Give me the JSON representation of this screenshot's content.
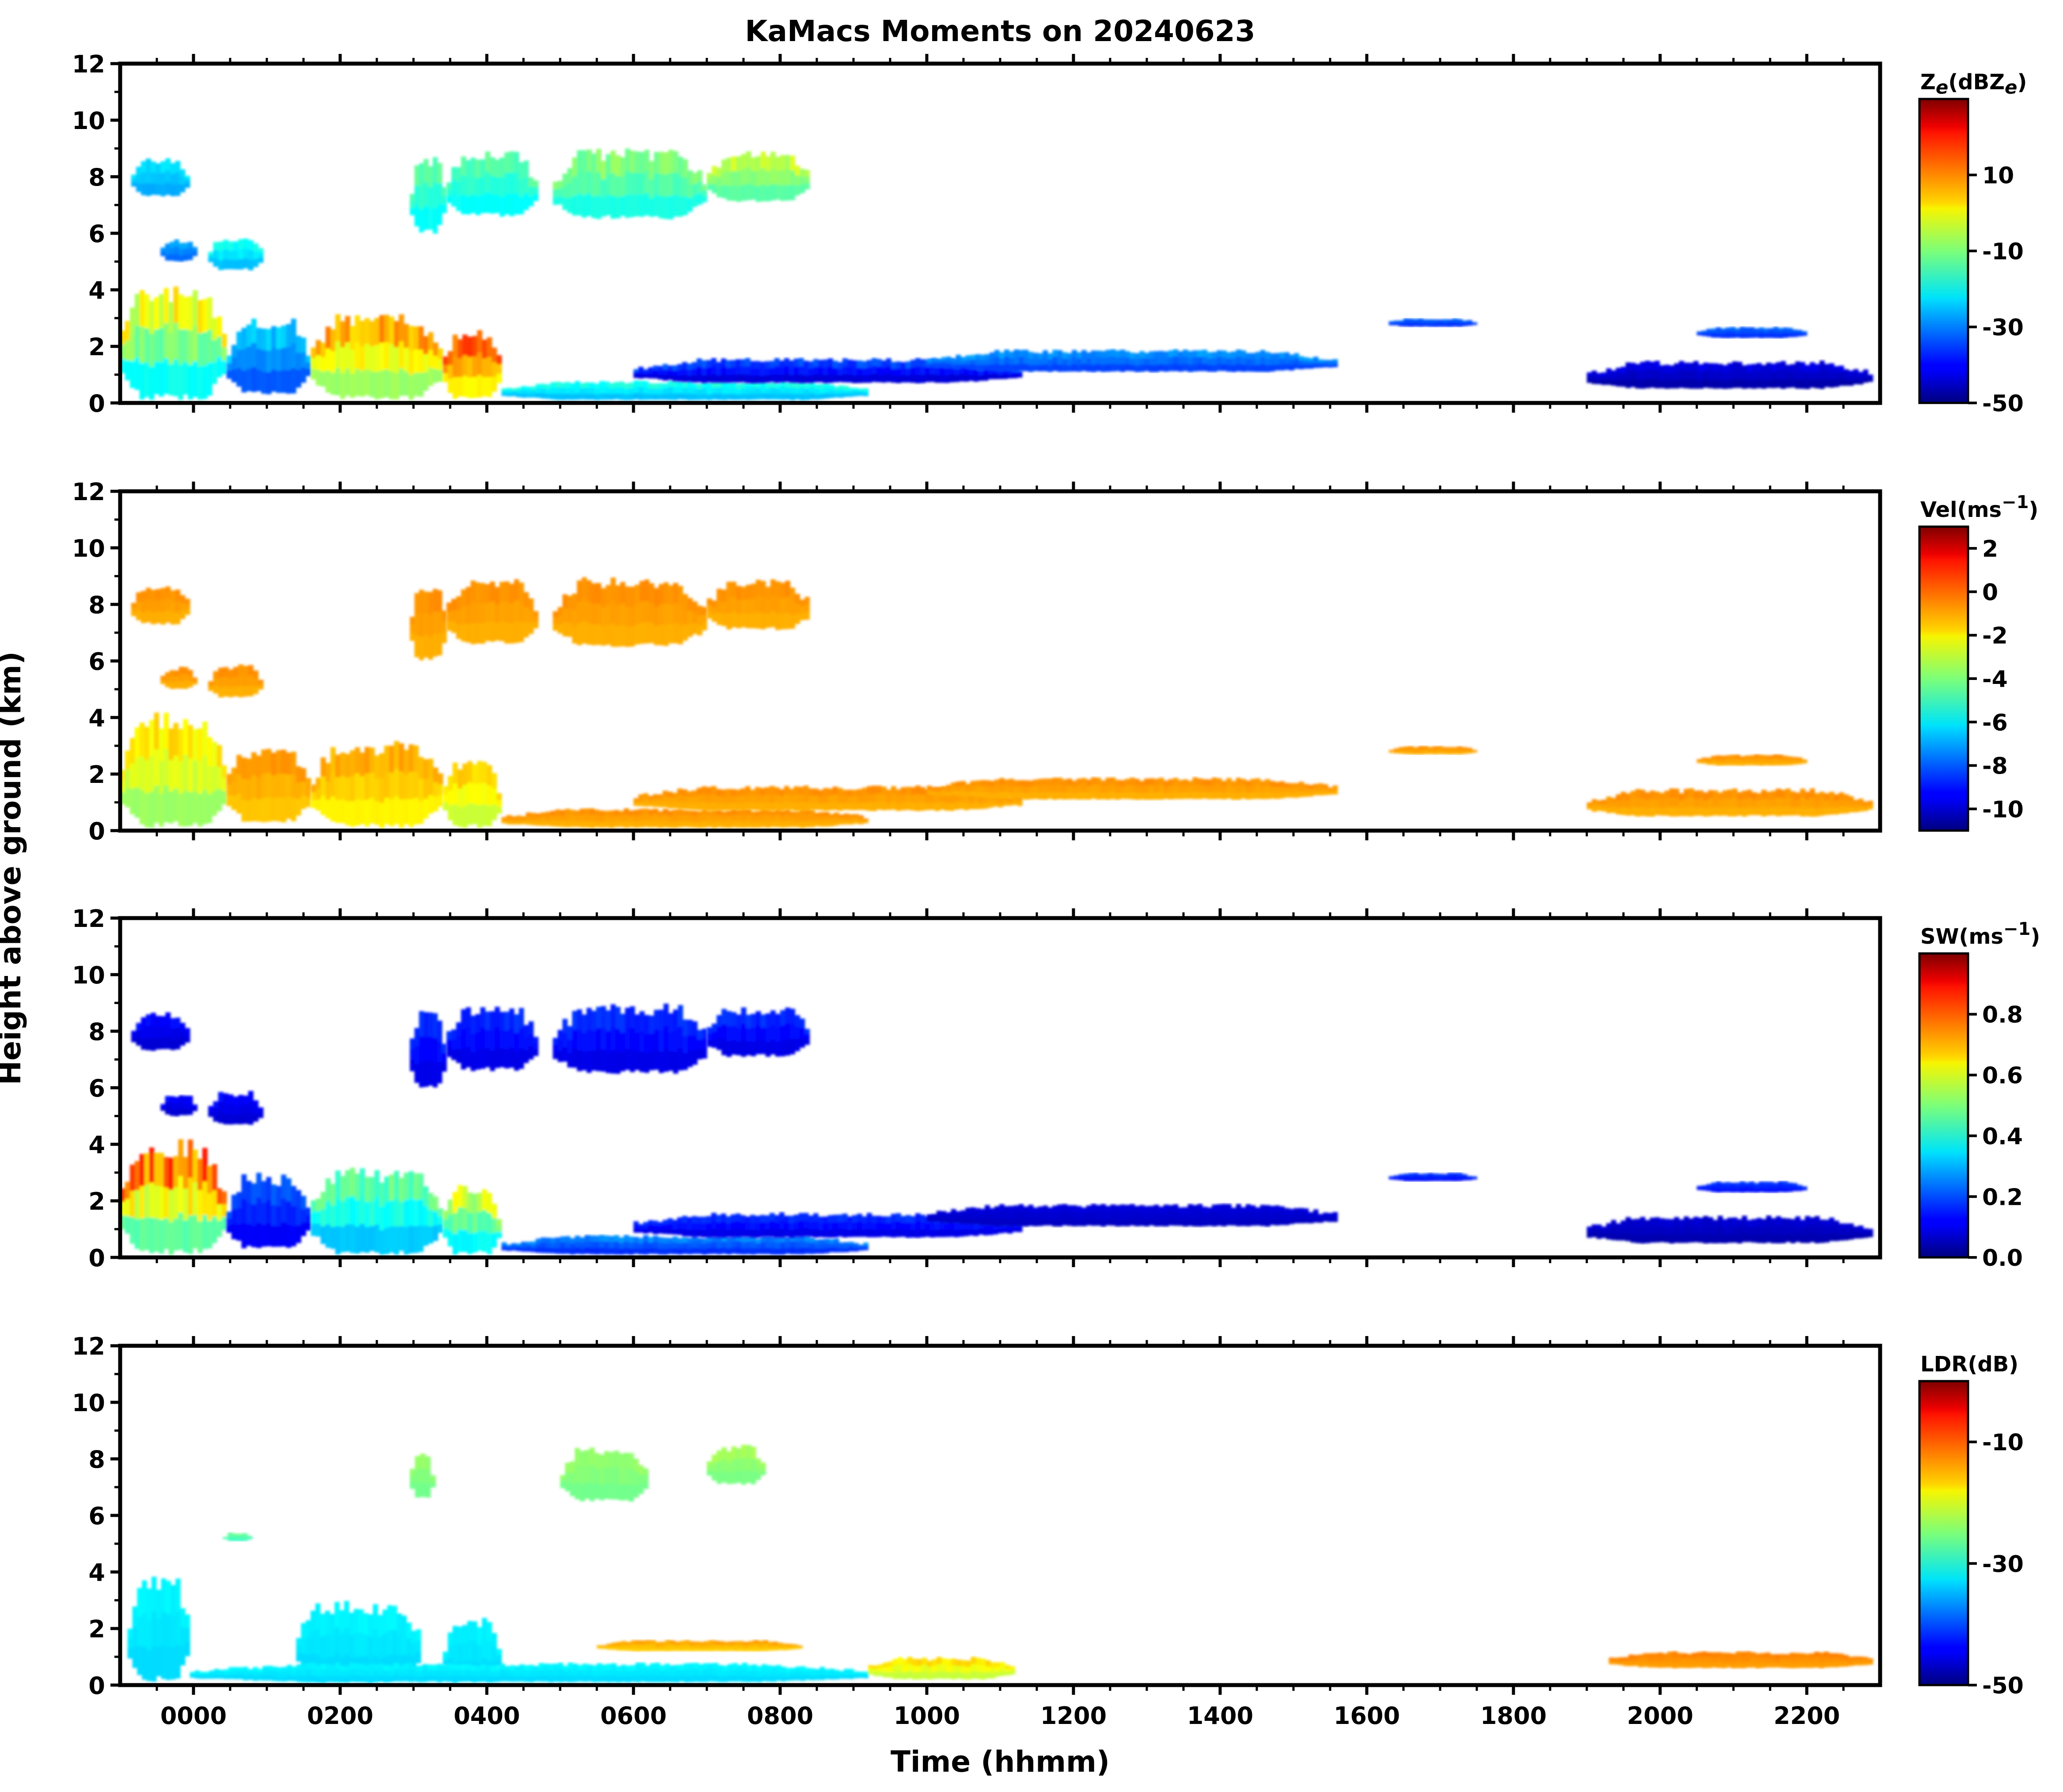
{
  "title": "KaMacs Moments on 20240623",
  "chart_data": [
    {
      "type": "heatmap",
      "panel": "Ze",
      "colorbar_label_html": "Z<tspan font-style='italic' font-size='42' dy='10'>e</tspan><tspan dy='-10'>(dBZ</tspan><tspan font-style='italic' font-size='42' dy='10'>e</tspan><tspan dy='-10'>)</tspan>",
      "colorbar_ticks": [
        -50,
        -30,
        -10,
        10
      ],
      "colorbar_range": [
        -50,
        30
      ],
      "ylim": [
        0,
        12
      ],
      "yticks": [
        0,
        2,
        4,
        6,
        8,
        10,
        12
      ],
      "features": [
        {
          "t0": -85,
          "t1": -5,
          "h0": 7.3,
          "h1": 8.7,
          "v0": -30,
          "v1": -20
        },
        {
          "t0": -45,
          "t1": 5,
          "h0": 5.0,
          "h1": 5.8,
          "v0": -35,
          "v1": -25
        },
        {
          "t0": 20,
          "t1": 95,
          "h0": 4.7,
          "h1": 5.9,
          "v0": -30,
          "v1": -15
        },
        {
          "t0": 295,
          "t1": 345,
          "h0": 6.0,
          "h1": 8.8,
          "v0": -25,
          "v1": -10
        },
        {
          "t0": 345,
          "t1": 470,
          "h0": 6.6,
          "h1": 8.9,
          "v0": -25,
          "v1": -10
        },
        {
          "t0": 490,
          "t1": 700,
          "h0": 6.5,
          "h1": 9.0,
          "v0": -25,
          "v1": -5
        },
        {
          "t0": 700,
          "t1": 840,
          "h0": 7.1,
          "h1": 8.9,
          "v0": -20,
          "v1": 0
        },
        {
          "t0": -100,
          "t1": 45,
          "h0": 0.1,
          "h1": 4.2,
          "v0": -35,
          "v1": 10
        },
        {
          "t0": 45,
          "t1": 160,
          "h0": 0.3,
          "h1": 3.0,
          "v0": -40,
          "v1": -20
        },
        {
          "t0": 160,
          "t1": 340,
          "h0": 0.1,
          "h1": 3.2,
          "v0": -20,
          "v1": 15
        },
        {
          "t0": 340,
          "t1": 420,
          "h0": 0.1,
          "h1": 2.6,
          "v0": -10,
          "v1": 20
        },
        {
          "t0": 420,
          "t1": 920,
          "h0": 0.1,
          "h1": 0.8,
          "v0": -30,
          "v1": -15
        },
        {
          "t0": 600,
          "t1": 1130,
          "h0": 0.7,
          "h1": 1.6,
          "v0": -50,
          "v1": -30
        },
        {
          "t0": 1000,
          "t1": 1560,
          "h0": 1.1,
          "h1": 1.9,
          "v0": -40,
          "v1": -25
        },
        {
          "t0": 1630,
          "t1": 1750,
          "h0": 2.7,
          "h1": 3.0,
          "v0": -40,
          "v1": -30
        },
        {
          "t0": 2050,
          "t1": 2200,
          "h0": 2.3,
          "h1": 2.7,
          "v0": -40,
          "v1": -30
        },
        {
          "t0": 1900,
          "t1": 2290,
          "h0": 0.5,
          "h1": 1.5,
          "v0": -50,
          "v1": -40
        }
      ]
    },
    {
      "type": "heatmap",
      "panel": "Vel",
      "colorbar_label_html": "Vel(ms<tspan font-size='40' dy='-20'>−1</tspan><tspan dy='20'>)</tspan>",
      "colorbar_ticks": [
        -10,
        -8,
        -6,
        -4,
        -2,
        0,
        2
      ],
      "colorbar_range": [
        -11,
        3
      ],
      "ylim": [
        0,
        12
      ],
      "yticks": [
        0,
        2,
        4,
        6,
        8,
        10,
        12
      ],
      "features": [
        {
          "t0": -85,
          "t1": -5,
          "h0": 7.3,
          "h1": 8.7,
          "v0": -1.5,
          "v1": -0.5
        },
        {
          "t0": -45,
          "t1": 5,
          "h0": 5.0,
          "h1": 5.8,
          "v0": -1.5,
          "v1": -0.5
        },
        {
          "t0": 20,
          "t1": 95,
          "h0": 4.7,
          "h1": 5.9,
          "v0": -1.5,
          "v1": -0.5
        },
        {
          "t0": 295,
          "t1": 345,
          "h0": 6.0,
          "h1": 8.8,
          "v0": -1.5,
          "v1": -0.5
        },
        {
          "t0": 345,
          "t1": 470,
          "h0": 6.6,
          "h1": 8.9,
          "v0": -1.5,
          "v1": -0.5
        },
        {
          "t0": 490,
          "t1": 700,
          "h0": 6.5,
          "h1": 9.0,
          "v0": -1.5,
          "v1": -0.5
        },
        {
          "t0": 700,
          "t1": 840,
          "h0": 7.1,
          "h1": 8.9,
          "v0": -1.5,
          "v1": -0.5
        },
        {
          "t0": -100,
          "t1": 45,
          "h0": 0.1,
          "h1": 4.2,
          "v0": -5,
          "v1": -1
        },
        {
          "t0": 45,
          "t1": 160,
          "h0": 0.3,
          "h1": 3.0,
          "v0": -2,
          "v1": -0.5
        },
        {
          "t0": 160,
          "t1": 340,
          "h0": 0.1,
          "h1": 3.2,
          "v0": -3,
          "v1": -0.5
        },
        {
          "t0": 340,
          "t1": 420,
          "h0": 0.1,
          "h1": 2.6,
          "v0": -4,
          "v1": -1
        },
        {
          "t0": 420,
          "t1": 920,
          "h0": 0.1,
          "h1": 0.8,
          "v0": -1.5,
          "v1": -0.5
        },
        {
          "t0": 600,
          "t1": 1130,
          "h0": 0.7,
          "h1": 1.6,
          "v0": -1.5,
          "v1": -0.5
        },
        {
          "t0": 1000,
          "t1": 1560,
          "h0": 1.1,
          "h1": 1.9,
          "v0": -1.5,
          "v1": -0.5
        },
        {
          "t0": 1630,
          "t1": 1750,
          "h0": 2.7,
          "h1": 3.0,
          "v0": -1.5,
          "v1": -0.5
        },
        {
          "t0": 2050,
          "t1": 2200,
          "h0": 2.3,
          "h1": 2.7,
          "v0": -1.5,
          "v1": -0.5
        },
        {
          "t0": 1900,
          "t1": 2290,
          "h0": 0.5,
          "h1": 1.5,
          "v0": -1.5,
          "v1": -0.5
        }
      ]
    },
    {
      "type": "heatmap",
      "panel": "SW",
      "colorbar_label_html": "SW(ms<tspan font-size='40' dy='-20'>−1</tspan><tspan dy='20'>)</tspan>",
      "colorbar_ticks": [
        0.0,
        0.2,
        0.4,
        0.6,
        0.8
      ],
      "colorbar_tick_labels": [
        "0.0",
        "0.2",
        "0.4",
        "0.6",
        "0.8"
      ],
      "colorbar_range": [
        0,
        1.0
      ],
      "ylim": [
        0,
        12
      ],
      "yticks": [
        0,
        2,
        4,
        6,
        8,
        10,
        12
      ],
      "features": [
        {
          "t0": -85,
          "t1": -5,
          "h0": 7.3,
          "h1": 8.7,
          "v0": 0.05,
          "v1": 0.15
        },
        {
          "t0": -45,
          "t1": 5,
          "h0": 5.0,
          "h1": 5.8,
          "v0": 0.05,
          "v1": 0.15
        },
        {
          "t0": 20,
          "t1": 95,
          "h0": 4.7,
          "h1": 5.9,
          "v0": 0.05,
          "v1": 0.15
        },
        {
          "t0": 295,
          "t1": 345,
          "h0": 6.0,
          "h1": 8.8,
          "v0": 0.05,
          "v1": 0.2
        },
        {
          "t0": 345,
          "t1": 470,
          "h0": 6.6,
          "h1": 8.9,
          "v0": 0.05,
          "v1": 0.2
        },
        {
          "t0": 490,
          "t1": 700,
          "h0": 6.5,
          "h1": 9.0,
          "v0": 0.05,
          "v1": 0.2
        },
        {
          "t0": 700,
          "t1": 840,
          "h0": 7.1,
          "h1": 8.9,
          "v0": 0.05,
          "v1": 0.2
        },
        {
          "t0": -100,
          "t1": 45,
          "h0": 0.1,
          "h1": 4.2,
          "v0": 0.2,
          "v1": 0.95
        },
        {
          "t0": 45,
          "t1": 160,
          "h0": 0.3,
          "h1": 3.0,
          "v0": 0.05,
          "v1": 0.25
        },
        {
          "t0": 160,
          "t1": 340,
          "h0": 0.1,
          "h1": 3.2,
          "v0": 0.2,
          "v1": 0.55
        },
        {
          "t0": 340,
          "t1": 420,
          "h0": 0.1,
          "h1": 2.6,
          "v0": 0.2,
          "v1": 0.7
        },
        {
          "t0": 420,
          "t1": 920,
          "h0": 0.1,
          "h1": 0.8,
          "v0": 0.1,
          "v1": 0.3
        },
        {
          "t0": 600,
          "t1": 1130,
          "h0": 0.7,
          "h1": 1.6,
          "v0": 0.05,
          "v1": 0.2
        },
        {
          "t0": 1000,
          "t1": 1560,
          "h0": 1.1,
          "h1": 1.9,
          "v0": 0.05,
          "v1": 0.1
        },
        {
          "t0": 1630,
          "t1": 1750,
          "h0": 2.7,
          "h1": 3.0,
          "v0": 0.1,
          "v1": 0.2
        },
        {
          "t0": 2050,
          "t1": 2200,
          "h0": 2.3,
          "h1": 2.7,
          "v0": 0.1,
          "v1": 0.2
        },
        {
          "t0": 1900,
          "t1": 2290,
          "h0": 0.5,
          "h1": 1.5,
          "v0": 0.02,
          "v1": 0.1
        }
      ]
    },
    {
      "type": "heatmap",
      "panel": "LDR",
      "colorbar_label_html": "LDR(dB)",
      "colorbar_ticks": [
        -50,
        -30,
        -10
      ],
      "colorbar_range": [
        -50,
        0
      ],
      "ylim": [
        0,
        12
      ],
      "yticks": [
        0,
        2,
        4,
        6,
        8,
        10,
        12
      ],
      "features": [
        {
          "t0": 295,
          "t1": 330,
          "h0": 6.6,
          "h1": 8.3,
          "v0": -27,
          "v1": -23
        },
        {
          "t0": 500,
          "t1": 620,
          "h0": 6.5,
          "h1": 8.4,
          "v0": -27,
          "v1": -23
        },
        {
          "t0": 700,
          "t1": 780,
          "h0": 7.1,
          "h1": 8.5,
          "v0": -27,
          "v1": -22
        },
        {
          "t0": 40,
          "t1": 80,
          "h0": 5.1,
          "h1": 5.4,
          "v0": -30,
          "v1": -25
        },
        {
          "t0": -90,
          "t1": -5,
          "h0": 0.1,
          "h1": 3.9,
          "v0": -34,
          "v1": -31
        },
        {
          "t0": 140,
          "t1": 310,
          "h0": 0.1,
          "h1": 3.0,
          "v0": -34,
          "v1": -31
        },
        {
          "t0": 340,
          "t1": 420,
          "h0": 0.1,
          "h1": 2.4,
          "v0": -34,
          "v1": -31
        },
        {
          "t0": -5,
          "t1": 920,
          "h0": 0.1,
          "h1": 0.8,
          "v0": -34,
          "v1": -31
        },
        {
          "t0": 550,
          "t1": 830,
          "h0": 1.2,
          "h1": 1.6,
          "v0": -18,
          "v1": -13
        },
        {
          "t0": 920,
          "t1": 1120,
          "h0": 0.2,
          "h1": 1.0,
          "v0": -25,
          "v1": -15
        },
        {
          "t0": 1930,
          "t1": 2290,
          "h0": 0.6,
          "h1": 1.2,
          "v0": -15,
          "v1": -12
        }
      ]
    }
  ],
  "xaxis": {
    "label": "Time (hhmm)",
    "range": [
      -100,
      2300
    ],
    "ticks": [
      0,
      200,
      400,
      600,
      800,
      1000,
      1200,
      1400,
      1600,
      1800,
      2000,
      2200
    ],
    "tick_labels": [
      "0000",
      "0200",
      "0400",
      "0600",
      "0800",
      "1000",
      "1200",
      "1400",
      "1600",
      "1800",
      "2000",
      "2200"
    ]
  },
  "yaxis": {
    "label": "Height above ground (km)"
  },
  "colormap": "jet"
}
